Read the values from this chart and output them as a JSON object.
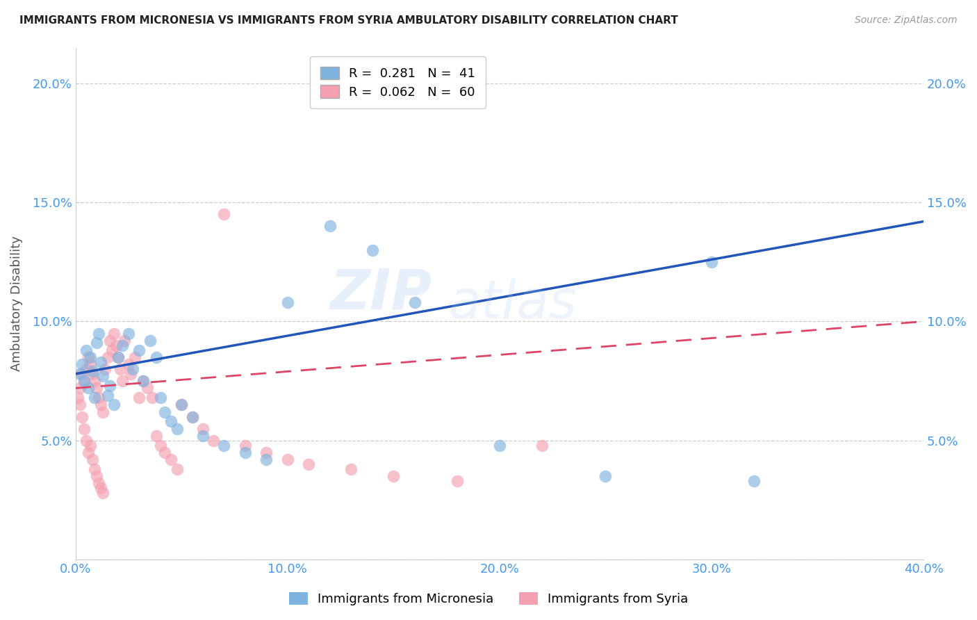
{
  "title": "IMMIGRANTS FROM MICRONESIA VS IMMIGRANTS FROM SYRIA AMBULATORY DISABILITY CORRELATION CHART",
  "source": "Source: ZipAtlas.com",
  "ylabel": "Ambulatory Disability",
  "watermark": "ZIPatlas",
  "xlim": [
    0.0,
    0.4
  ],
  "ylim": [
    0.0,
    0.215
  ],
  "xticks": [
    0.0,
    0.1,
    0.2,
    0.3,
    0.4
  ],
  "xtick_labels": [
    "0.0%",
    "10.0%",
    "20.0%",
    "30.0%",
    "40.0%"
  ],
  "yticks": [
    0.0,
    0.05,
    0.1,
    0.15,
    0.2
  ],
  "ytick_labels": [
    "",
    "5.0%",
    "10.0%",
    "15.0%",
    "20.0%"
  ],
  "micronesia_R": 0.281,
  "micronesia_N": 41,
  "syria_R": 0.062,
  "syria_N": 60,
  "micronesia_color": "#7EB3E0",
  "syria_color": "#F4A0B0",
  "micronesia_line_color": "#2255BB",
  "syria_line_color": "#DD4466",
  "background_color": "#FFFFFF",
  "grid_color": "#CCCCCC",
  "micronesia_x": [
    0.002,
    0.003,
    0.004,
    0.005,
    0.006,
    0.007,
    0.008,
    0.009,
    0.01,
    0.011,
    0.012,
    0.013,
    0.015,
    0.016,
    0.018,
    0.02,
    0.022,
    0.025,
    0.027,
    0.03,
    0.032,
    0.035,
    0.038,
    0.04,
    0.042,
    0.045,
    0.048,
    0.05,
    0.055,
    0.06,
    0.07,
    0.08,
    0.09,
    0.1,
    0.12,
    0.14,
    0.16,
    0.2,
    0.25,
    0.3,
    0.32
  ],
  "micronesia_y": [
    0.078,
    0.082,
    0.075,
    0.088,
    0.072,
    0.085,
    0.079,
    0.068,
    0.091,
    0.095,
    0.083,
    0.077,
    0.069,
    0.073,
    0.065,
    0.085,
    0.09,
    0.095,
    0.08,
    0.088,
    0.075,
    0.092,
    0.085,
    0.068,
    0.062,
    0.058,
    0.055,
    0.065,
    0.06,
    0.052,
    0.048,
    0.045,
    0.042,
    0.108,
    0.14,
    0.13,
    0.108,
    0.048,
    0.035,
    0.125,
    0.033
  ],
  "syria_x": [
    0.001,
    0.002,
    0.002,
    0.003,
    0.003,
    0.004,
    0.004,
    0.005,
    0.005,
    0.006,
    0.006,
    0.007,
    0.007,
    0.008,
    0.008,
    0.009,
    0.009,
    0.01,
    0.01,
    0.011,
    0.011,
    0.012,
    0.012,
    0.013,
    0.013,
    0.014,
    0.015,
    0.016,
    0.017,
    0.018,
    0.019,
    0.02,
    0.021,
    0.022,
    0.023,
    0.025,
    0.026,
    0.028,
    0.03,
    0.032,
    0.034,
    0.036,
    0.038,
    0.04,
    0.042,
    0.045,
    0.048,
    0.05,
    0.055,
    0.06,
    0.065,
    0.07,
    0.08,
    0.09,
    0.1,
    0.11,
    0.13,
    0.15,
    0.18,
    0.22
  ],
  "syria_y": [
    0.068,
    0.072,
    0.065,
    0.078,
    0.06,
    0.075,
    0.055,
    0.08,
    0.05,
    0.085,
    0.045,
    0.082,
    0.048,
    0.078,
    0.042,
    0.075,
    0.038,
    0.072,
    0.035,
    0.068,
    0.032,
    0.065,
    0.03,
    0.062,
    0.028,
    0.08,
    0.085,
    0.092,
    0.088,
    0.095,
    0.09,
    0.085,
    0.08,
    0.075,
    0.092,
    0.082,
    0.078,
    0.085,
    0.068,
    0.075,
    0.072,
    0.068,
    0.052,
    0.048,
    0.045,
    0.042,
    0.038,
    0.065,
    0.06,
    0.055,
    0.05,
    0.145,
    0.048,
    0.045,
    0.042,
    0.04,
    0.038,
    0.035,
    0.033,
    0.048
  ],
  "mic_line_x0": 0.0,
  "mic_line_y0": 0.078,
  "mic_line_x1": 0.4,
  "mic_line_y1": 0.142,
  "syr_line_x0": 0.0,
  "syr_line_y0": 0.072,
  "syr_line_x1": 0.4,
  "syr_line_y1": 0.1
}
